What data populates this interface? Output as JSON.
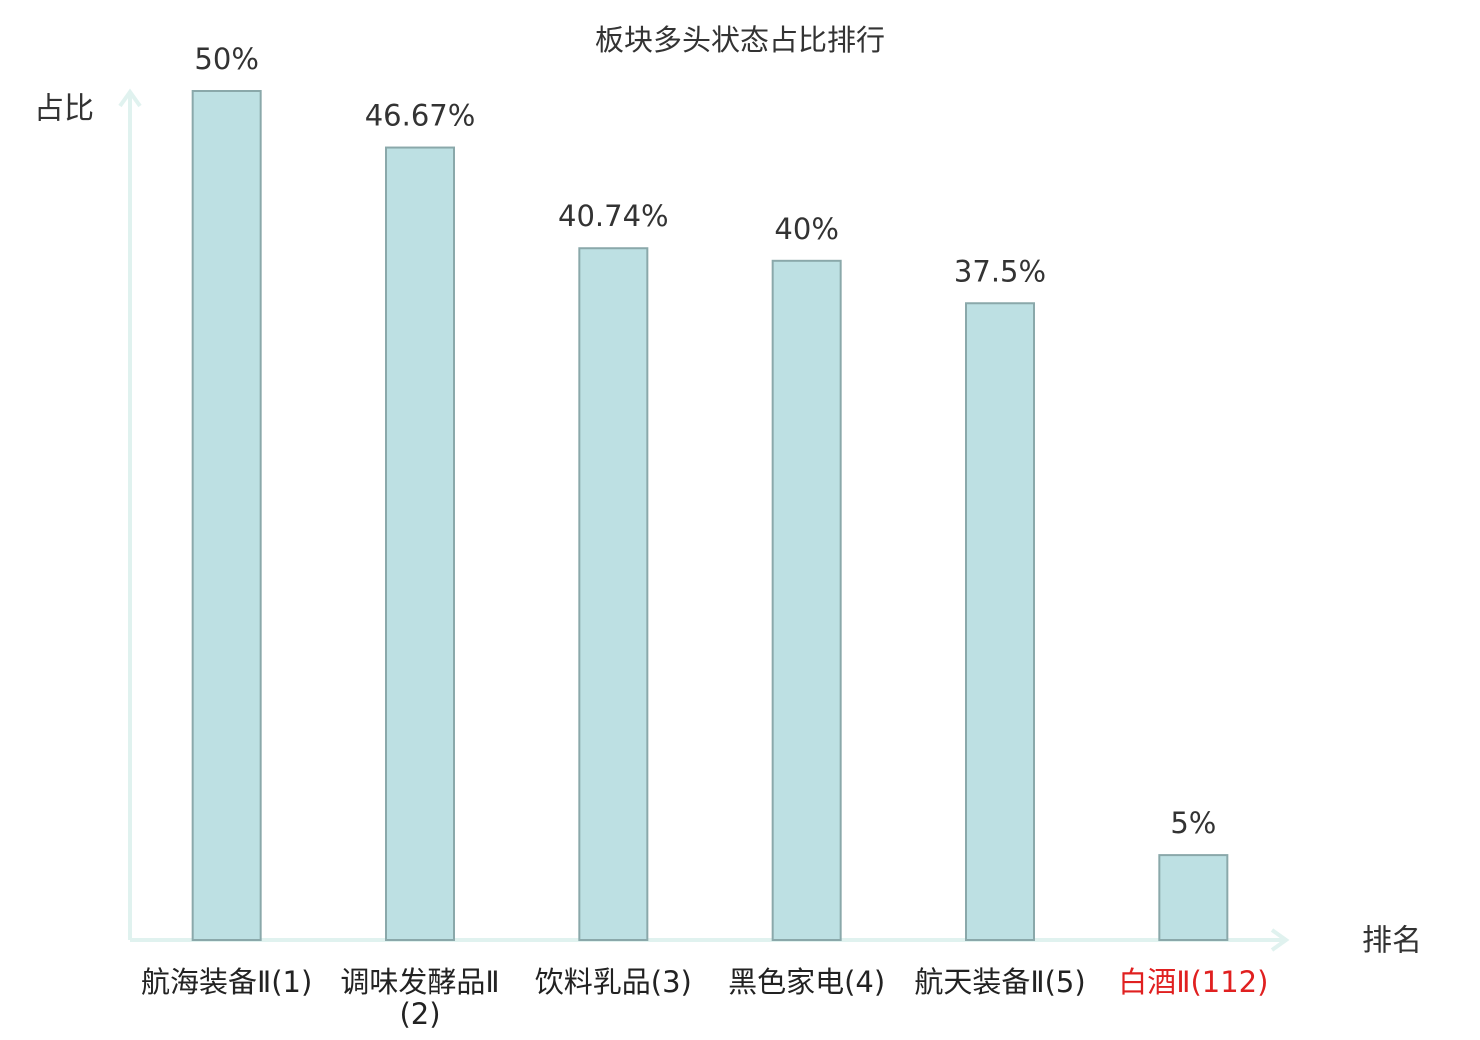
{
  "chart_data": {
    "type": "bar",
    "title": "板块多头状态占比排行",
    "y_label": "占比",
    "x_label": "排名",
    "categories": [
      "航海装备Ⅱ(1)",
      "调味发酵品Ⅱ(2)",
      "饮料乳品(3)",
      "黑色家电(4)",
      "航天装备Ⅱ(5)",
      "白酒Ⅱ(112)"
    ],
    "category_colors": [
      "#222222",
      "#222222",
      "#222222",
      "#222222",
      "#222222",
      "#e02020"
    ],
    "values": [
      50,
      46.67,
      40.74,
      40,
      37.5,
      5
    ],
    "value_labels": [
      "50%",
      "46.67%",
      "40.74%",
      "40%",
      "37.5%",
      "5%"
    ],
    "color": "#bde0e3",
    "edge_color": "#8aa8aa",
    "ylim": [
      0,
      50
    ]
  }
}
